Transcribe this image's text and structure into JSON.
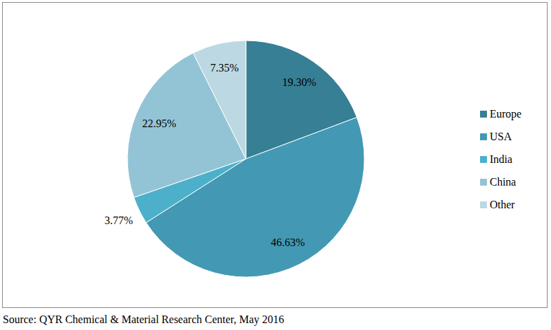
{
  "chart_data": {
    "type": "pie",
    "categories": [
      "Europe",
      "USA",
      "India",
      "China",
      "Other"
    ],
    "values": [
      19.3,
      46.63,
      3.77,
      22.95,
      7.35
    ],
    "value_labels": [
      "19.30%",
      "46.63%",
      "3.77%",
      "22.95%",
      "7.35%"
    ],
    "colors": [
      "#367f95",
      "#4399b3",
      "#4db0cb",
      "#93c4d6",
      "#bcd9e3"
    ],
    "data_labels": true,
    "legend": "right",
    "source": "Source: QYR Chemical & Material Research Center, May 2016"
  }
}
